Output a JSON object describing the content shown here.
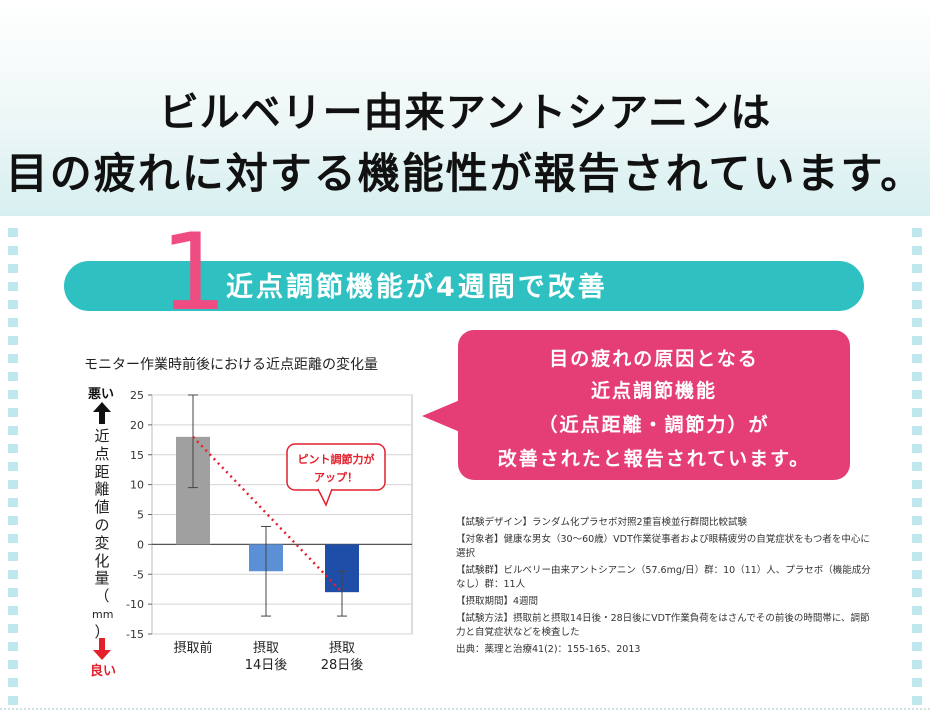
{
  "headline": {
    "line1": "ビルベリー由来アントシアニンは",
    "line2": "目の疲れに対する機能性が報告されています。"
  },
  "section": {
    "number": "1",
    "title": "近点調節機能が4週間で改善"
  },
  "callout": {
    "lines": [
      "目の疲れの原因となる",
      "近点調節機能",
      "（近点距離・調節力）が",
      "改善されたと報告されています。"
    ]
  },
  "bubble": {
    "lines": [
      "ピント調節力が",
      "アップ！"
    ]
  },
  "side_labels": {
    "bad": "悪い",
    "good": "良い",
    "axis": [
      "近",
      "点",
      "距",
      "離",
      "値",
      "の",
      "変",
      "化",
      "量",
      "（",
      "mm",
      "）"
    ]
  },
  "notes": [
    "【試験デザイン】ランダム化プラセボ対照2重盲検並行群間比較試験",
    "【対象者】健康な男女（30〜60歳）VDT作業従事者および眼精疲労の自覚症状をもつ者を中心に選択",
    "【試験群】ビルベリー由来アントシアニン（57.6mg/日）群：10（11）人、プラセボ（機能成分なし）群：11人",
    "【摂取期間】4週間",
    "【試験方法】摂取前と摂取14日後・28日後にVDT作業負荷をはさんでその前後の時間帯に、調節力と自覚症状などを検査した",
    "出典：薬理と治療41(2)：155-165、2013"
  ],
  "colors": {
    "teal": "#2fc0c2",
    "pink": "#e53d76",
    "pink_number": "#ef4c82",
    "bar_before": "#a0a0a0",
    "bar_14": "#5b8fd6",
    "bar_28": "#1f4ea8",
    "trend": "#e2212d"
  },
  "chart_data": {
    "type": "bar",
    "title": "モニター作業時前後における近点距離の変化量",
    "categories": [
      [
        "摂取前"
      ],
      [
        "摂取",
        "14日後"
      ],
      [
        "摂取",
        "28日後"
      ]
    ],
    "values": [
      18,
      -4.5,
      -8
    ],
    "error_bars": [
      [
        9.5,
        25
      ],
      [
        -12,
        3
      ],
      [
        -12,
        -4.5
      ]
    ],
    "ylim": [
      -15,
      25
    ],
    "yticks": [
      25,
      20,
      15,
      10,
      5,
      0,
      -5,
      -10,
      -15
    ],
    "ytick_labels": [
      "25",
      "20",
      "15",
      "10",
      "5",
      "0",
      "-5",
      "-10",
      "-15"
    ],
    "ylabel": "近点距離値の変化量（mm）",
    "grid": true,
    "trend_line": "red dotted line from 摂取前 bar top to 摂取28日後 bar bottom"
  }
}
